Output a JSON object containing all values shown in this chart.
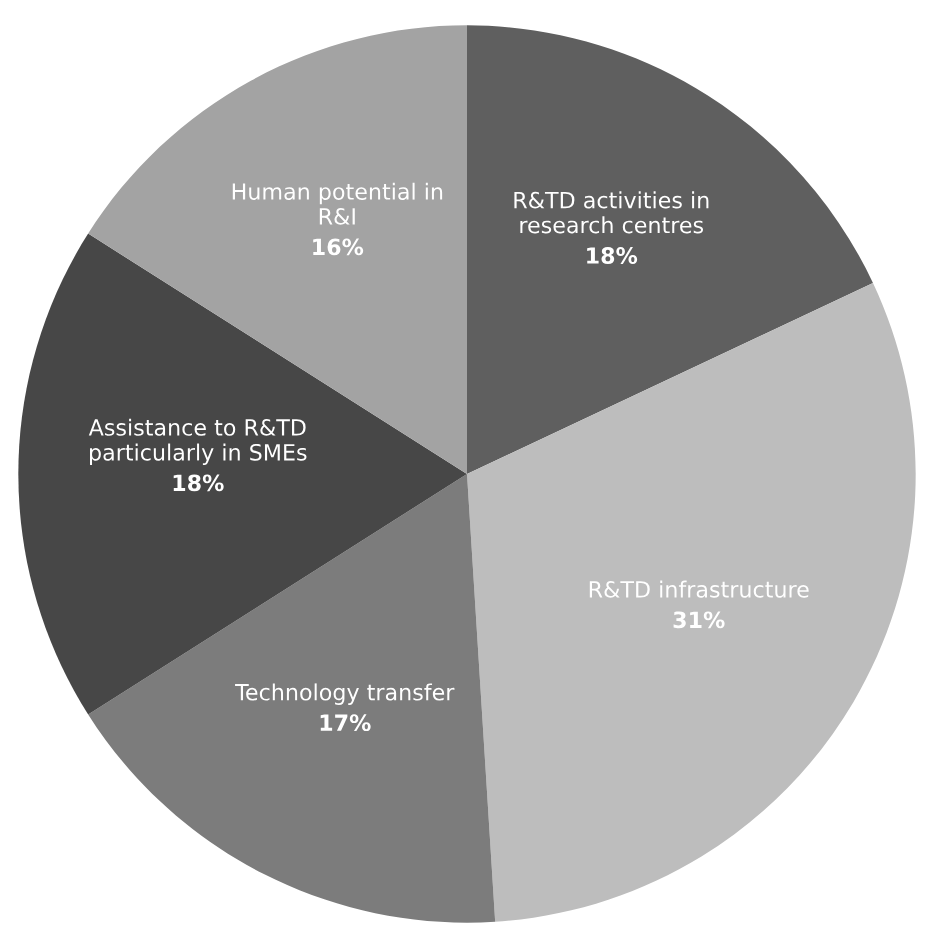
{
  "chart_data": {
    "type": "pie",
    "categories": [
      "R&TD activities in\nresearch centres",
      "R&TD infrastructure",
      "Technology transfer",
      "Assistance to R&TD\nparticularly in SMEs",
      "Human potential in\nR&I"
    ],
    "values": [
      18,
      31,
      17,
      18,
      16
    ],
    "colors": [
      "#5f5f5f",
      "#bdbdbd",
      "#7c7c7c",
      "#474747",
      "#a3a3a3"
    ],
    "value_labels": [
      "18%",
      "31%",
      "17%",
      "18%",
      "16%"
    ],
    "legend": false
  }
}
